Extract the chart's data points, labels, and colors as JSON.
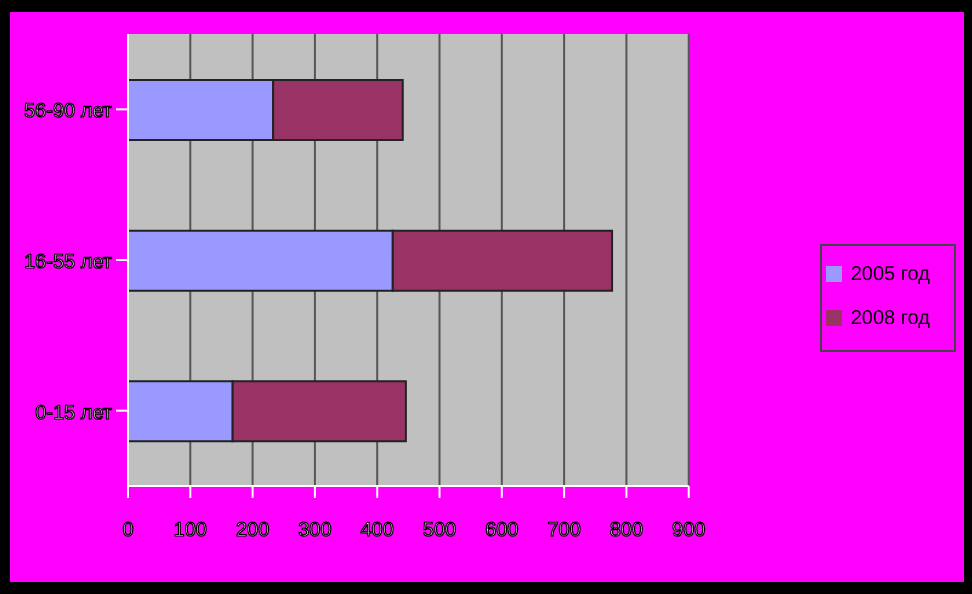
{
  "chart_data": {
    "type": "bar",
    "orientation": "horizontal",
    "stacked": true,
    "categories": [
      "56-90 лет",
      "16-55 лет",
      "0-15 лет"
    ],
    "series": [
      {
        "name": "2005 год",
        "color": "#9999ff",
        "values": [
          233,
          425,
          168
        ]
      },
      {
        "name": "2008 год",
        "color": "#993366",
        "values": [
          208,
          352,
          278
        ]
      }
    ],
    "xlim": [
      0,
      900
    ],
    "xticks": [
      0,
      100,
      200,
      300,
      400,
      500,
      600,
      700,
      800,
      900
    ],
    "grid": "x",
    "legend": "right"
  }
}
